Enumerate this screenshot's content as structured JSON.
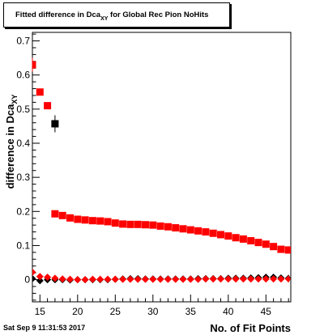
{
  "title": {
    "prefix": "Fitted difference in Dca",
    "subscript": "XY",
    "suffix": " for Global Rec Pion NoHits"
  },
  "footer_timestamp": "Sat Sep  9 11:31:53 2017",
  "chart_data": {
    "type": "scatter",
    "xlabel": "No. of Fit Points",
    "ylabel": "difference in Dca",
    "ylabel_subscript": "XY",
    "xlim": [
      14,
      48.3
    ],
    "ylim": [
      -0.065,
      0.725
    ],
    "x_ticks": [
      15,
      20,
      25,
      30,
      35,
      40,
      45
    ],
    "y_ticks": [
      0,
      0.1,
      0.2,
      0.3,
      0.4,
      0.5,
      0.6,
      0.7
    ],
    "y_tick_labels": [
      "0",
      "0.1",
      "0.2",
      "0.3",
      "0.4",
      "0.5",
      "0.6",
      "0.7"
    ],
    "grid": false,
    "series": [
      {
        "marker": "square",
        "color": "#000000",
        "points": [
          {
            "x": 17,
            "y": 0.457,
            "err": 0.025
          }
        ]
      },
      {
        "marker": "square",
        "color": "#ff0000",
        "points": [
          {
            "x": 14,
            "y": 0.63,
            "err": 0.02
          },
          {
            "x": 15,
            "y": 0.55,
            "err": 0.01
          },
          {
            "x": 16,
            "y": 0.51,
            "err": 0.01
          },
          {
            "x": 17,
            "y": 0.193
          },
          {
            "x": 18,
            "y": 0.188
          },
          {
            "x": 19,
            "y": 0.181
          },
          {
            "x": 20,
            "y": 0.177
          },
          {
            "x": 21,
            "y": 0.175
          },
          {
            "x": 22,
            "y": 0.173
          },
          {
            "x": 23,
            "y": 0.172
          },
          {
            "x": 24,
            "y": 0.17
          },
          {
            "x": 25,
            "y": 0.166
          },
          {
            "x": 26,
            "y": 0.163
          },
          {
            "x": 27,
            "y": 0.162
          },
          {
            "x": 28,
            "y": 0.162
          },
          {
            "x": 29,
            "y": 0.161
          },
          {
            "x": 30,
            "y": 0.16
          },
          {
            "x": 31,
            "y": 0.157
          },
          {
            "x": 32,
            "y": 0.155
          },
          {
            "x": 33,
            "y": 0.152
          },
          {
            "x": 34,
            "y": 0.149
          },
          {
            "x": 35,
            "y": 0.146
          },
          {
            "x": 36,
            "y": 0.143
          },
          {
            "x": 37,
            "y": 0.14
          },
          {
            "x": 38,
            "y": 0.136
          },
          {
            "x": 39,
            "y": 0.132
          },
          {
            "x": 40,
            "y": 0.128
          },
          {
            "x": 41,
            "y": 0.123
          },
          {
            "x": 42,
            "y": 0.119
          },
          {
            "x": 43,
            "y": 0.114
          },
          {
            "x": 44,
            "y": 0.109
          },
          {
            "x": 45,
            "y": 0.104
          },
          {
            "x": 46,
            "y": 0.097
          },
          {
            "x": 47,
            "y": 0.089
          },
          {
            "x": 48,
            "y": 0.087
          }
        ]
      },
      {
        "marker": "diamond",
        "color": "#000000",
        "points": [
          {
            "x": 14,
            "y": 0.003
          },
          {
            "x": 15,
            "y": -0.003
          },
          {
            "x": 16,
            "y": 0.0
          },
          {
            "x": 17,
            "y": 0.0
          },
          {
            "x": 18,
            "y": 0.0
          },
          {
            "x": 19,
            "y": -0.001
          },
          {
            "x": 20,
            "y": 0.0
          },
          {
            "x": 21,
            "y": 0.0
          },
          {
            "x": 22,
            "y": 0.0
          },
          {
            "x": 23,
            "y": 0.0
          },
          {
            "x": 24,
            "y": 0.0
          },
          {
            "x": 25,
            "y": 0.001
          },
          {
            "x": 26,
            "y": 0.002
          },
          {
            "x": 27,
            "y": 0.003
          },
          {
            "x": 28,
            "y": 0.003
          },
          {
            "x": 29,
            "y": 0.002
          },
          {
            "x": 30,
            "y": 0.002
          },
          {
            "x": 31,
            "y": 0.002
          },
          {
            "x": 32,
            "y": 0.002
          },
          {
            "x": 33,
            "y": 0.002
          },
          {
            "x": 34,
            "y": 0.002
          },
          {
            "x": 35,
            "y": 0.002
          },
          {
            "x": 36,
            "y": 0.003
          },
          {
            "x": 37,
            "y": 0.003
          },
          {
            "x": 38,
            "y": 0.003
          },
          {
            "x": 39,
            "y": 0.003
          },
          {
            "x": 40,
            "y": 0.004
          },
          {
            "x": 41,
            "y": 0.004
          },
          {
            "x": 42,
            "y": 0.004
          },
          {
            "x": 43,
            "y": 0.005
          },
          {
            "x": 44,
            "y": 0.006
          },
          {
            "x": 45,
            "y": 0.007
          },
          {
            "x": 46,
            "y": 0.007
          },
          {
            "x": 47,
            "y": 0.005
          },
          {
            "x": 48,
            "y": 0.004
          }
        ]
      },
      {
        "marker": "diamond",
        "color": "#ff0000",
        "points": [
          {
            "x": 14,
            "y": 0.022
          },
          {
            "x": 15,
            "y": 0.009
          },
          {
            "x": 16,
            "y": 0.007
          },
          {
            "x": 17,
            "y": 0.004
          },
          {
            "x": 18,
            "y": 0.002
          },
          {
            "x": 19,
            "y": 0.001
          },
          {
            "x": 20,
            "y": 0.0
          },
          {
            "x": 21,
            "y": 0.0
          },
          {
            "x": 22,
            "y": 0.001
          },
          {
            "x": 23,
            "y": 0.001
          },
          {
            "x": 24,
            "y": 0.001
          },
          {
            "x": 25,
            "y": 0.001
          },
          {
            "x": 26,
            "y": 0.001
          },
          {
            "x": 27,
            "y": 0.001
          },
          {
            "x": 28,
            "y": 0.001
          },
          {
            "x": 29,
            "y": 0.001
          },
          {
            "x": 30,
            "y": 0.001
          },
          {
            "x": 31,
            "y": 0.001
          },
          {
            "x": 32,
            "y": 0.001
          },
          {
            "x": 33,
            "y": 0.001
          },
          {
            "x": 34,
            "y": 0.001
          },
          {
            "x": 35,
            "y": 0.001
          },
          {
            "x": 36,
            "y": 0.001
          },
          {
            "x": 37,
            "y": 0.002
          },
          {
            "x": 38,
            "y": 0.002
          },
          {
            "x": 39,
            "y": 0.002
          },
          {
            "x": 40,
            "y": 0.002
          },
          {
            "x": 41,
            "y": 0.002
          },
          {
            "x": 42,
            "y": 0.002
          },
          {
            "x": 43,
            "y": 0.002
          },
          {
            "x": 44,
            "y": 0.002
          },
          {
            "x": 45,
            "y": 0.002
          },
          {
            "x": 46,
            "y": 0.002
          },
          {
            "x": 47,
            "y": 0.002
          },
          {
            "x": 48,
            "y": 0.002
          }
        ]
      }
    ]
  }
}
